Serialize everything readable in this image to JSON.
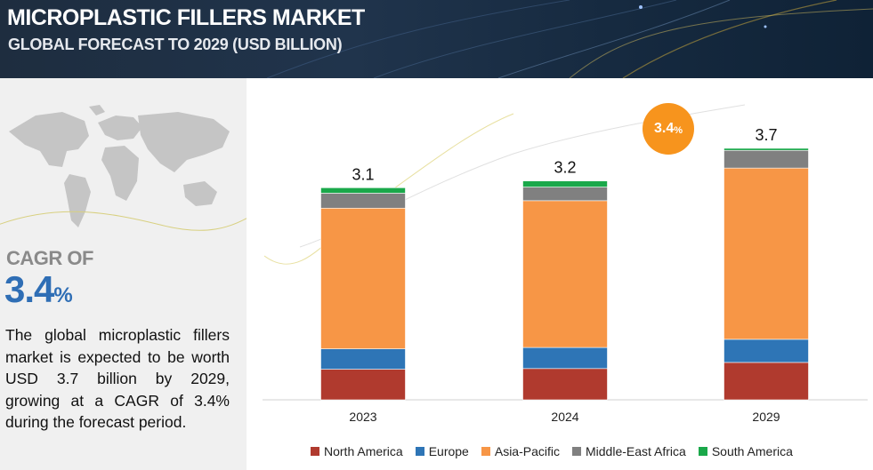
{
  "header": {
    "title": "MICROPLASTIC FILLERS MARKET",
    "subtitle": "GLOBAL FORECAST TO 2029 (USD BILLION)"
  },
  "left": {
    "cagr_label": "CAGR OF",
    "cagr_value": "3.4",
    "cagr_unit": "%",
    "description": "The global microplastic fillers market is expected to be worth USD 3.7 billion by 2029, growing at a CAGR of 3.4% during the forecast",
    "description_last": "period."
  },
  "badge": {
    "value": "3.4",
    "unit": "%"
  },
  "colors": {
    "north_america": "#b03a2e",
    "europe": "#2e75b6",
    "asia_pacific": "#f79646",
    "middle_east_africa": "#808080",
    "south_america": "#1aa84a"
  },
  "chart_data": {
    "type": "bar",
    "stacked": true,
    "categories": [
      "2023",
      "2024",
      "2029"
    ],
    "totals": [
      3.1,
      3.2,
      3.7
    ],
    "series": [
      {
        "name": "North America",
        "values": [
          0.45,
          0.46,
          0.55
        ],
        "color": "#b03a2e"
      },
      {
        "name": "Europe",
        "values": [
          0.3,
          0.31,
          0.34
        ],
        "color": "#2e75b6"
      },
      {
        "name": "Asia-Pacific",
        "values": [
          2.07,
          2.16,
          2.52
        ],
        "color": "#f79646"
      },
      {
        "name": "Middle-East Africa",
        "values": [
          0.22,
          0.2,
          0.26
        ],
        "color": "#808080"
      },
      {
        "name": "South America",
        "values": [
          0.08,
          0.09,
          0.03
        ],
        "color": "#1aa84a"
      }
    ],
    "total_labels": [
      "3.1",
      "3.2",
      "3.7"
    ],
    "legend_position": "bottom",
    "grid": false
  }
}
